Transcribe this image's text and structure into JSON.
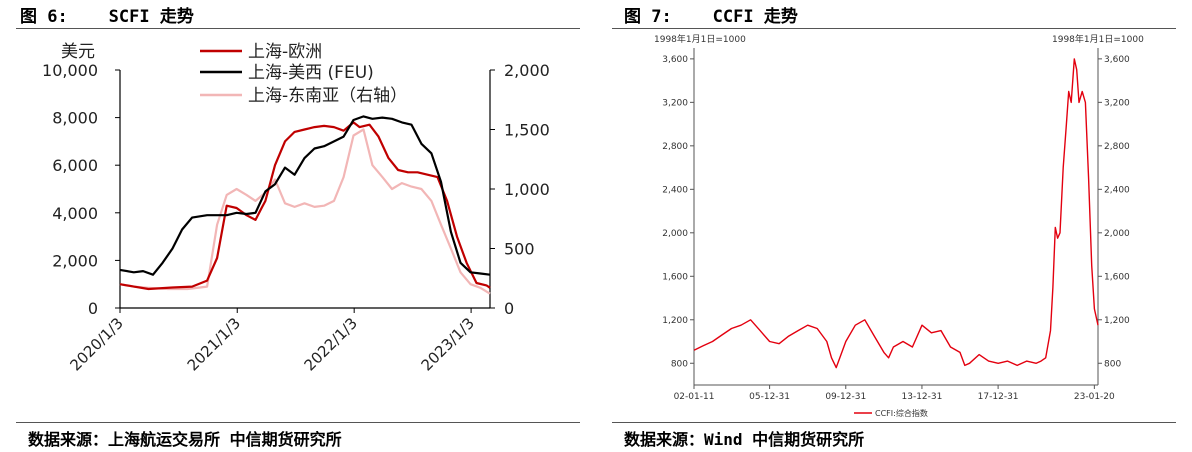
{
  "figures": [
    {
      "figure_label": "图 6:",
      "figure_title": "SCFI 走势",
      "source": "数据来源：上海航运交易所 中信期货研究所"
    },
    {
      "figure_label": "图 7:",
      "figure_title": "CCFI 走势",
      "source": "数据来源：Wind 中信期货研究所"
    }
  ],
  "colors": {
    "europe": "#c00000",
    "us_west": "#000000",
    "southeast_asia": "#f2b6b6",
    "ccfi": "#e3000f"
  },
  "chart_data": [
    {
      "type": "line",
      "ylabel": "美元",
      "left_axis": {
        "ylim": [
          0,
          10000
        ],
        "ticks": [
          "0",
          "2,000",
          "4,000",
          "6,000",
          "8,000",
          "10,000"
        ],
        "tick_values": [
          0,
          2000,
          4000,
          6000,
          8000,
          10000
        ]
      },
      "right_axis": {
        "ylim": [
          0,
          2000
        ],
        "ticks": [
          "0",
          "500",
          "1,000",
          "1,500",
          "2,000"
        ],
        "tick_values": [
          0,
          500,
          1000,
          1500,
          2000
        ]
      },
      "xlim": [
        "2020-01-03",
        "2023-03-03"
      ],
      "x_ticks": [
        {
          "label": "2020/1/3",
          "date": "2020-01-03"
        },
        {
          "label": "2021/1/3",
          "date": "2021-01-03"
        },
        {
          "label": "2022/1/3",
          "date": "2022-01-03"
        },
        {
          "label": "2023/1/3",
          "date": "2023-01-03"
        }
      ],
      "legend": "top-center",
      "grid": false,
      "series": [
        {
          "name": "上海-欧洲",
          "axis": "left",
          "color_key": "europe",
          "x": [
            "2020-01-03",
            "2020-02-15",
            "2020-04-01",
            "2020-06-15",
            "2020-08-15",
            "2020-10-01",
            "2020-11-01",
            "2020-12-01",
            "2021-01-01",
            "2021-02-01",
            "2021-03-01",
            "2021-03-20",
            "2021-04-01",
            "2021-05-01",
            "2021-06-01",
            "2021-07-01",
            "2021-08-01",
            "2021-09-01",
            "2021-10-01",
            "2021-11-01",
            "2021-12-01",
            "2022-01-01",
            "2022-01-20",
            "2022-02-20",
            "2022-03-20",
            "2022-04-20",
            "2022-05-20",
            "2022-06-20",
            "2022-07-20",
            "2022-08-20",
            "2022-09-20",
            "2022-10-20",
            "2022-11-20",
            "2022-12-20",
            "2023-01-20",
            "2023-02-20",
            "2023-03-03"
          ],
          "values": [
            1000,
            900,
            800,
            860,
            900,
            1150,
            2100,
            4300,
            4200,
            3900,
            3700,
            4200,
            4500,
            6000,
            7000,
            7400,
            7500,
            7600,
            7650,
            7600,
            7450,
            7800,
            7600,
            7700,
            7200,
            6300,
            5800,
            5700,
            5700,
            5600,
            5500,
            4500,
            3000,
            1900,
            1050,
            950,
            850
          ]
        },
        {
          "name": "上海-美西 (FEU)",
          "axis": "left",
          "color_key": "us_west",
          "x": [
            "2020-01-03",
            "2020-02-15",
            "2020-03-15",
            "2020-04-15",
            "2020-05-15",
            "2020-06-15",
            "2020-07-15",
            "2020-08-15",
            "2020-10-01",
            "2020-11-01",
            "2020-12-01",
            "2021-01-01",
            "2021-02-01",
            "2021-03-01",
            "2021-04-01",
            "2021-05-01",
            "2021-06-01",
            "2021-07-01",
            "2021-08-01",
            "2021-09-01",
            "2021-10-01",
            "2021-11-01",
            "2021-12-01",
            "2022-01-01",
            "2022-02-01",
            "2022-03-01",
            "2022-04-01",
            "2022-05-01",
            "2022-06-01",
            "2022-07-01",
            "2022-08-01",
            "2022-09-01",
            "2022-10-01",
            "2022-11-01",
            "2022-12-01",
            "2023-01-01",
            "2023-02-01",
            "2023-03-03"
          ],
          "values": [
            1600,
            1500,
            1550,
            1400,
            1900,
            2500,
            3300,
            3800,
            3900,
            3900,
            3900,
            4000,
            3950,
            4000,
            4900,
            5200,
            5900,
            5600,
            6300,
            6700,
            6800,
            7000,
            7200,
            7900,
            8050,
            7950,
            8000,
            7950,
            7800,
            7700,
            6900,
            6500,
            5300,
            3200,
            1900,
            1500,
            1450,
            1400
          ]
        },
        {
          "name": "上海-东南亚（右轴）",
          "axis": "right",
          "color_key": "southeast_asia",
          "x": [
            "2020-01-03",
            "2020-02-15",
            "2020-04-01",
            "2020-06-01",
            "2020-08-01",
            "2020-10-01",
            "2020-11-01",
            "2020-12-01",
            "2021-01-01",
            "2021-02-01",
            "2021-03-01",
            "2021-04-01",
            "2021-05-01",
            "2021-06-01",
            "2021-07-01",
            "2021-08-01",
            "2021-09-01",
            "2021-10-01",
            "2021-11-01",
            "2021-12-01",
            "2022-01-01",
            "2022-02-01",
            "2022-03-01",
            "2022-04-01",
            "2022-05-01",
            "2022-06-01",
            "2022-07-01",
            "2022-08-01",
            "2022-09-01",
            "2022-10-01",
            "2022-11-01",
            "2022-12-01",
            "2023-01-01",
            "2023-02-01",
            "2023-03-03"
          ],
          "values": [
            200,
            180,
            170,
            160,
            160,
            180,
            700,
            950,
            1000,
            950,
            900,
            970,
            1080,
            880,
            850,
            880,
            850,
            860,
            900,
            1100,
            1450,
            1500,
            1200,
            1100,
            1000,
            1050,
            1020,
            1000,
            900,
            700,
            500,
            300,
            200,
            170,
            120
          ]
        }
      ]
    },
    {
      "type": "line",
      "left_unit": "1998年1月1日=1000",
      "right_unit": "1998年1月1日=1000",
      "ylim": [
        600,
        3700
      ],
      "y_ticks": [
        "800",
        "1,200",
        "1,600",
        "2,000",
        "2,400",
        "2,800",
        "3,200",
        "3,600"
      ],
      "y_tick_values": [
        800,
        1200,
        1600,
        2000,
        2400,
        2800,
        3200,
        3600
      ],
      "xlim": [
        "2002-01-11",
        "2023-03-31"
      ],
      "x_ticks": [
        {
          "label": "02-01-11",
          "date": "2002-01-11"
        },
        {
          "label": "05-12-31",
          "date": "2005-12-31"
        },
        {
          "label": "09-12-31",
          "date": "2009-12-31"
        },
        {
          "label": "13-12-31",
          "date": "2013-12-31"
        },
        {
          "label": "17-12-31",
          "date": "2017-12-31"
        },
        {
          "label": "23-01-20",
          "date": "2023-01-20"
        }
      ],
      "legend": "bottom-center",
      "grid": false,
      "series": [
        {
          "name": "CCFI:综合指数",
          "color_key": "ccfi",
          "x": [
            "2002-01-11",
            "2002-07-01",
            "2003-01-01",
            "2003-07-01",
            "2004-01-01",
            "2004-07-01",
            "2005-01-01",
            "2005-07-01",
            "2006-01-01",
            "2006-07-01",
            "2007-01-01",
            "2007-07-01",
            "2008-01-01",
            "2008-07-01",
            "2009-01-01",
            "2009-04-01",
            "2009-07-01",
            "2010-01-01",
            "2010-07-01",
            "2011-01-01",
            "2011-07-01",
            "2012-01-01",
            "2012-04-01",
            "2012-07-01",
            "2013-01-01",
            "2013-07-01",
            "2014-01-01",
            "2014-07-01",
            "2015-01-01",
            "2015-07-01",
            "2016-01-01",
            "2016-04-01",
            "2016-07-01",
            "2017-01-01",
            "2017-07-01",
            "2018-01-01",
            "2018-07-01",
            "2019-01-01",
            "2019-07-01",
            "2020-01-01",
            "2020-04-01",
            "2020-07-01",
            "2020-10-01",
            "2020-11-15",
            "2021-01-01",
            "2021-02-15",
            "2021-04-01",
            "2021-06-01",
            "2021-08-01",
            "2021-09-15",
            "2021-11-01",
            "2022-01-01",
            "2022-02-15",
            "2022-04-01",
            "2022-06-01",
            "2022-08-01",
            "2022-10-01",
            "2022-12-01",
            "2023-01-20",
            "2023-03-31"
          ],
          "values": [
            920,
            960,
            1000,
            1060,
            1120,
            1150,
            1200,
            1100,
            1000,
            980,
            1050,
            1100,
            1150,
            1120,
            1000,
            850,
            760,
            1000,
            1150,
            1200,
            1050,
            900,
            850,
            950,
            1000,
            950,
            1150,
            1080,
            1100,
            950,
            900,
            780,
            800,
            880,
            820,
            800,
            820,
            780,
            820,
            800,
            820,
            850,
            1100,
            1500,
            2050,
            1950,
            2000,
            2600,
            3000,
            3300,
            3200,
            3600,
            3500,
            3200,
            3300,
            3200,
            2500,
            1700,
            1300,
            1150
          ]
        }
      ]
    }
  ]
}
